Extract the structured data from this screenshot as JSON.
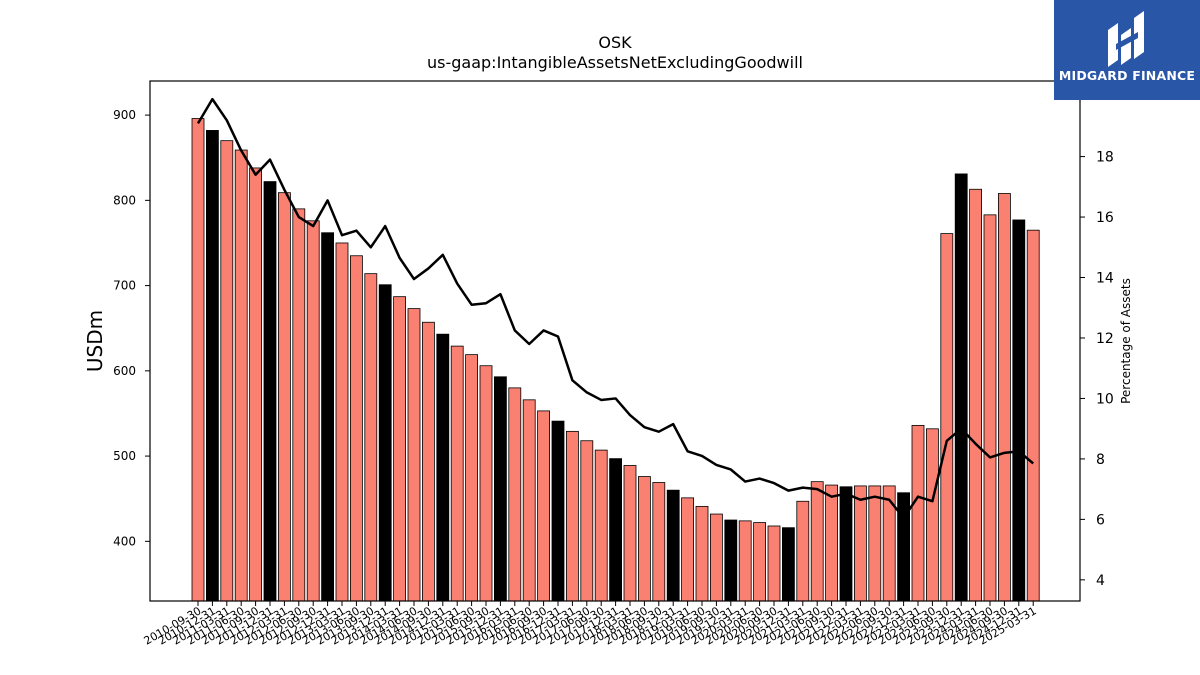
{
  "brand": {
    "name": "MIDGARD FINANCE",
    "color": "#2a56a8"
  },
  "chart_data": {
    "type": "bar",
    "title": "OSK",
    "subtitle": "us-gaap:IntangibleAssetsNetExcludingGoodwill",
    "ylabel": "USDm",
    "y2label": "Percentage of Assets",
    "ylim": [
      330,
      940
    ],
    "y2lim": [
      3.3,
      20.5
    ],
    "yticks": [
      400,
      500,
      600,
      700,
      800,
      900
    ],
    "y2ticks": [
      4,
      6,
      8,
      10,
      12,
      14,
      16,
      18
    ],
    "colors": {
      "quarter": "#fa8072",
      "fiscal_year_end": "#000000",
      "line": "#000000"
    },
    "categories": [
      "2010-09-30",
      "2010-12-31",
      "2011-03-31",
      "2011-06-30",
      "2011-09-30",
      "2011-12-31",
      "2012-03-31",
      "2012-06-30",
      "2012-09-30",
      "2012-12-31",
      "2013-03-31",
      "2013-06-30",
      "2013-09-30",
      "2013-12-31",
      "2014-03-31",
      "2014-06-30",
      "2014-09-30",
      "2014-12-31",
      "2015-03-31",
      "2015-06-30",
      "2015-09-30",
      "2015-12-31",
      "2016-03-31",
      "2016-06-30",
      "2016-09-30",
      "2016-12-31",
      "2017-03-31",
      "2017-06-30",
      "2017-09-30",
      "2017-12-31",
      "2018-03-31",
      "2018-06-30",
      "2018-09-30",
      "2018-12-31",
      "2019-03-31",
      "2019-06-30",
      "2019-09-30",
      "2019-12-31",
      "2020-03-31",
      "2020-06-30",
      "2020-09-30",
      "2020-12-31",
      "2021-03-31",
      "2021-06-30",
      "2021-09-30",
      "2021-12-31",
      "2022-03-31",
      "2022-06-30",
      "2022-09-30",
      "2022-12-31",
      "2023-03-31",
      "2023-06-30",
      "2023-09-30",
      "2023-12-31",
      "2024-03-31",
      "2024-06-30",
      "2024-09-30",
      "2024-12-31",
      "2025-03-31"
    ],
    "series": [
      {
        "values": [
          896,
          882,
          870,
          859,
          838,
          822,
          809,
          790,
          776,
          762,
          750,
          735,
          714,
          701,
          687,
          673,
          657,
          643,
          629,
          619,
          606,
          593,
          580,
          566,
          553,
          541,
          529,
          518,
          507,
          497,
          489,
          476,
          469,
          460,
          451,
          441,
          432,
          425,
          424,
          422,
          418,
          416,
          447,
          470,
          466,
          464,
          465,
          465,
          465,
          457,
          536,
          532,
          761,
          831,
          813,
          783,
          808,
          777,
          765
        ],
        "fiscal_year_end": [
          false,
          true,
          false,
          false,
          false,
          true,
          false,
          false,
          false,
          true,
          false,
          false,
          false,
          true,
          false,
          false,
          false,
          true,
          false,
          false,
          false,
          true,
          false,
          false,
          false,
          true,
          false,
          false,
          false,
          true,
          false,
          false,
          false,
          true,
          false,
          false,
          false,
          true,
          false,
          false,
          false,
          true,
          false,
          false,
          false,
          true,
          false,
          false,
          false,
          true,
          false,
          false,
          false,
          true,
          false,
          false,
          false,
          true,
          false
        ]
      },
      {
        "name": "Percentage of Assets",
        "axis": "right",
        "values": [
          19.1,
          19.9,
          19.2,
          18.2,
          17.4,
          17.9,
          16.9,
          16.0,
          15.7,
          16.55,
          15.4,
          15.55,
          15.0,
          15.7,
          14.65,
          13.95,
          14.3,
          14.75,
          13.8,
          13.1,
          13.15,
          13.45,
          12.25,
          11.8,
          12.25,
          12.05,
          10.6,
          10.2,
          9.95,
          10.0,
          9.45,
          9.05,
          8.9,
          9.15,
          8.25,
          8.1,
          7.8,
          7.65,
          7.25,
          7.35,
          7.2,
          6.95,
          7.05,
          7.0,
          6.75,
          6.85,
          6.65,
          6.75,
          6.65,
          6.05,
          6.75,
          6.6,
          8.6,
          9.0,
          8.5,
          8.05,
          8.2,
          8.25,
          7.85
        ]
      }
    ]
  }
}
